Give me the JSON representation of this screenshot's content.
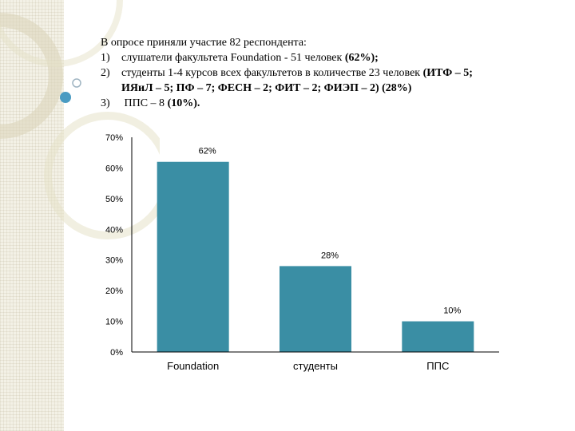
{
  "intro": {
    "title": "В опросе приняли участие 82 респондента:",
    "items": [
      {
        "num": "1)",
        "text": "слушатели факультета Foundation  - 51  человек ",
        "bold": "(62%);"
      },
      {
        "num": "2)",
        "text": "студенты 1-4 курсов всех факультетов в количестве 23 человек  ",
        "bold": "(ИТФ – 5;"
      },
      {
        "cont": "ИЯиЛ – 5; ПФ – 7; ФЕСН – 2; ФИТ – 2; ФИЭП – 2) (28%)"
      },
      {
        "num": "3)",
        "text": " ППС – 8 ",
        "bold": "(10%)."
      }
    ]
  },
  "colors": {
    "bar": "#3a8ea4",
    "side_strip": "#f3f1e6",
    "deco_ring": "#dcd6bb",
    "deco_dot": "#4a9bc2"
  },
  "chart_data": {
    "type": "bar",
    "categories": [
      "Foundation",
      "студенты",
      "ППС"
    ],
    "values": [
      62,
      28,
      10
    ],
    "data_labels": [
      "62%",
      "28%",
      "10%"
    ],
    "yticks": [
      "0%",
      "10%",
      "20%",
      "30%",
      "40%",
      "50%",
      "60%",
      "70%"
    ],
    "ylim": [
      0,
      70
    ],
    "grid": false,
    "legend": "none"
  }
}
